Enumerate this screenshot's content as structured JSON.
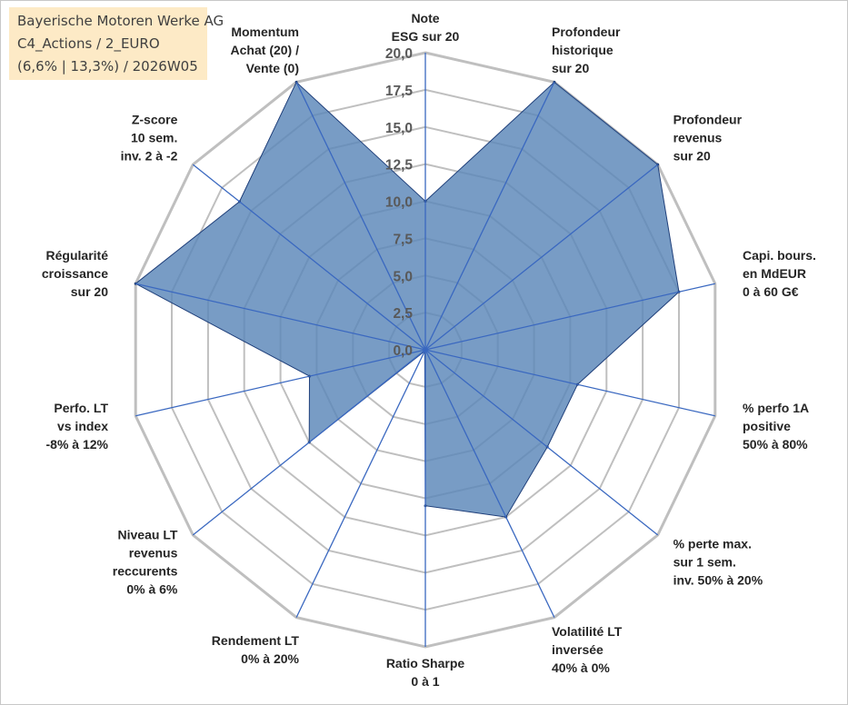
{
  "header": {
    "company": "Bayerische Motoren Werke AG",
    "portfolio": "C4_Actions / 2_EURO",
    "params": "(6,6% | 13,3%) / 2026W05"
  },
  "colors": {
    "fill": "#5a86b8",
    "line": "#3a68c0",
    "grid": "#bfbfbf",
    "title_bg": "#fdeac6"
  },
  "chart_data": {
    "type": "radar",
    "title": "Bayerische Motoren Werke AG",
    "rlim": [
      0,
      20
    ],
    "ticks": [
      "0,0",
      "2,5",
      "5,0",
      "7,5",
      "10,0",
      "12,5",
      "15,0",
      "17,5",
      "20,0"
    ],
    "axes": [
      {
        "label": [
          "Note",
          "ESG sur 20"
        ],
        "value": 10
      },
      {
        "label": [
          "Profondeur",
          "historique",
          "sur 20"
        ],
        "value": 20
      },
      {
        "label": [
          "Profondeur",
          "revenus",
          "sur 20"
        ],
        "value": 20
      },
      {
        "label": [
          "Capi. bours.",
          "en MdEUR",
          "0 à 60 G€"
        ],
        "value": 17.5
      },
      {
        "label": [
          "% perfo 1A",
          "positive",
          "50% à 80%"
        ],
        "value": 10.5
      },
      {
        "label": [
          "% perte max.",
          "sur 1 sem.",
          "inv. 50% à 20%"
        ],
        "value": 10.5
      },
      {
        "label": [
          "Volatilité LT",
          "inversée",
          "40% à 0%"
        ],
        "value": 12.5
      },
      {
        "label": [
          "Ratio Sharpe",
          "0 à 1"
        ],
        "value": 10.5
      },
      {
        "label": [
          "Rendement LT",
          "0% à 20%"
        ],
        "value": 0.1
      },
      {
        "label": [
          "Niveau LT",
          "revenus",
          "reccurents",
          "0% à 6%"
        ],
        "value": 10
      },
      {
        "label": [
          "Perfo. LT",
          "vs index",
          "-8% à 12%"
        ],
        "value": 8
      },
      {
        "label": [
          "Régularité",
          "croissance",
          "sur 20"
        ],
        "value": 20
      },
      {
        "label": [
          "Z-score",
          "10 sem.",
          "inv. 2 à -2"
        ],
        "value": 16
      },
      {
        "label": [
          "Momentum",
          "Achat (20) /",
          "Vente (0)"
        ],
        "value": 20
      }
    ]
  }
}
